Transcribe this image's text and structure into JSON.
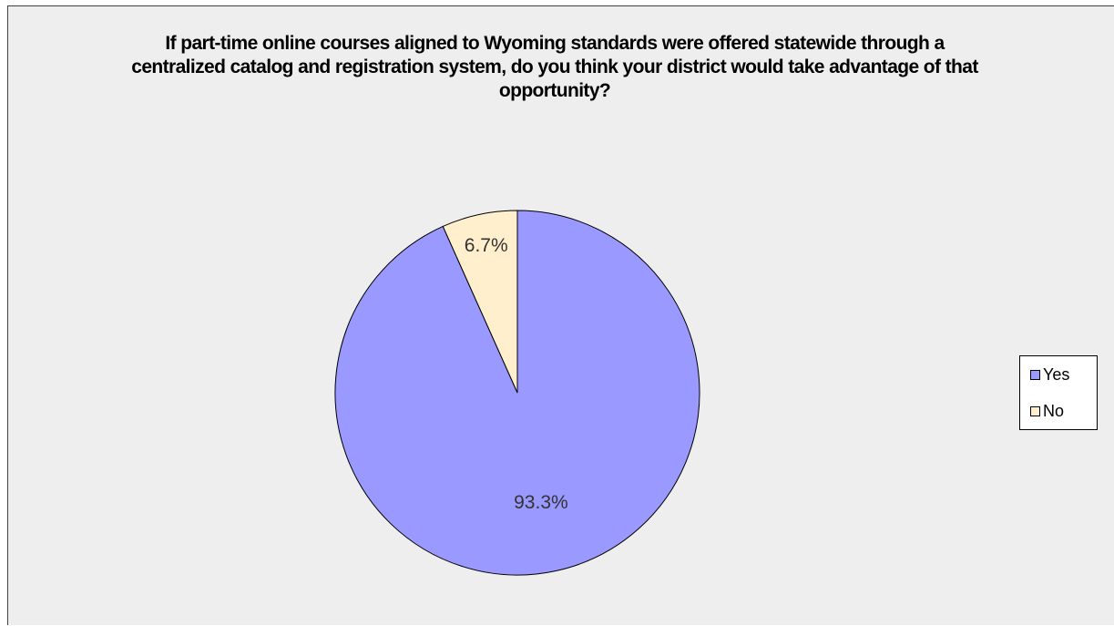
{
  "chart_data": {
    "type": "pie",
    "title": "If part-time online courses aligned to Wyoming standards were offered statewide through a centralized catalog and registration system, do you think your district would take advantage of that opportunity?",
    "categories": [
      "Yes",
      "No"
    ],
    "values": [
      93.3,
      6.7
    ],
    "labels": [
      "93.3%",
      "6.7%"
    ],
    "colors": [
      "#9999ff",
      "#ffefcc"
    ],
    "legend": {
      "position": "right",
      "entries": [
        "Yes",
        "No"
      ]
    }
  }
}
